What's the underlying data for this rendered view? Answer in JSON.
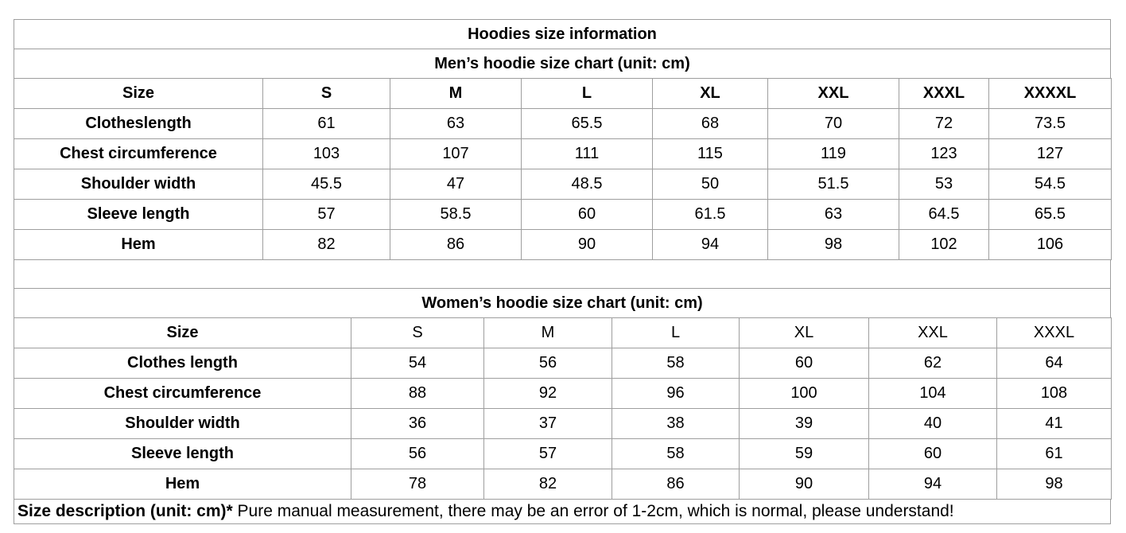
{
  "title": "Hoodies size information",
  "mens": {
    "subtitle": "Men’s hoodie size chart (unit: cm)",
    "size_label": "Size",
    "sizes": [
      "S",
      "M",
      "L",
      "XL",
      "XXL",
      "XXXL",
      "XXXXL"
    ],
    "rows": [
      {
        "label": "Clotheslength",
        "values": [
          "61",
          "63",
          "65.5",
          "68",
          "70",
          "72",
          "73.5"
        ]
      },
      {
        "label": "Chest circumference",
        "values": [
          "103",
          "107",
          "111",
          "115",
          "119",
          "123",
          "127"
        ]
      },
      {
        "label": "Shoulder width",
        "values": [
          "45.5",
          "47",
          "48.5",
          "50",
          "51.5",
          "53",
          "54.5"
        ]
      },
      {
        "label": "Sleeve length",
        "values": [
          "57",
          "58.5",
          "60",
          "61.5",
          "63",
          "64.5",
          "65.5"
        ]
      },
      {
        "label": "Hem",
        "values": [
          "82",
          "86",
          "90",
          "94",
          "98",
          "102",
          "106"
        ]
      }
    ]
  },
  "womens": {
    "subtitle": "Women’s hoodie size chart (unit: cm)",
    "size_label": "Size",
    "sizes": [
      "S",
      "M",
      "L",
      "XL",
      "XXL",
      "XXXL"
    ],
    "rows": [
      {
        "label": "Clothes length",
        "values": [
          "54",
          "56",
          "58",
          "60",
          "62",
          "64"
        ]
      },
      {
        "label": "Chest circumference",
        "values": [
          "88",
          "92",
          "96",
          "100",
          "104",
          "108"
        ]
      },
      {
        "label": "Shoulder width",
        "values": [
          "36",
          "37",
          "38",
          "39",
          "40",
          "41"
        ]
      },
      {
        "label": "Sleeve length",
        "values": [
          "56",
          "57",
          "58",
          "59",
          "60",
          "61"
        ]
      },
      {
        "label": "Hem",
        "values": [
          "78",
          "82",
          "86",
          "90",
          "94",
          "98"
        ]
      }
    ]
  },
  "footer": {
    "bold": "Size description (unit: cm)*",
    "text": " Pure manual measurement, there may be an error of 1-2cm, which is normal, please understand!"
  },
  "colors": {
    "border": "#9e9e9e",
    "text": "#000000",
    "background": "#ffffff"
  }
}
